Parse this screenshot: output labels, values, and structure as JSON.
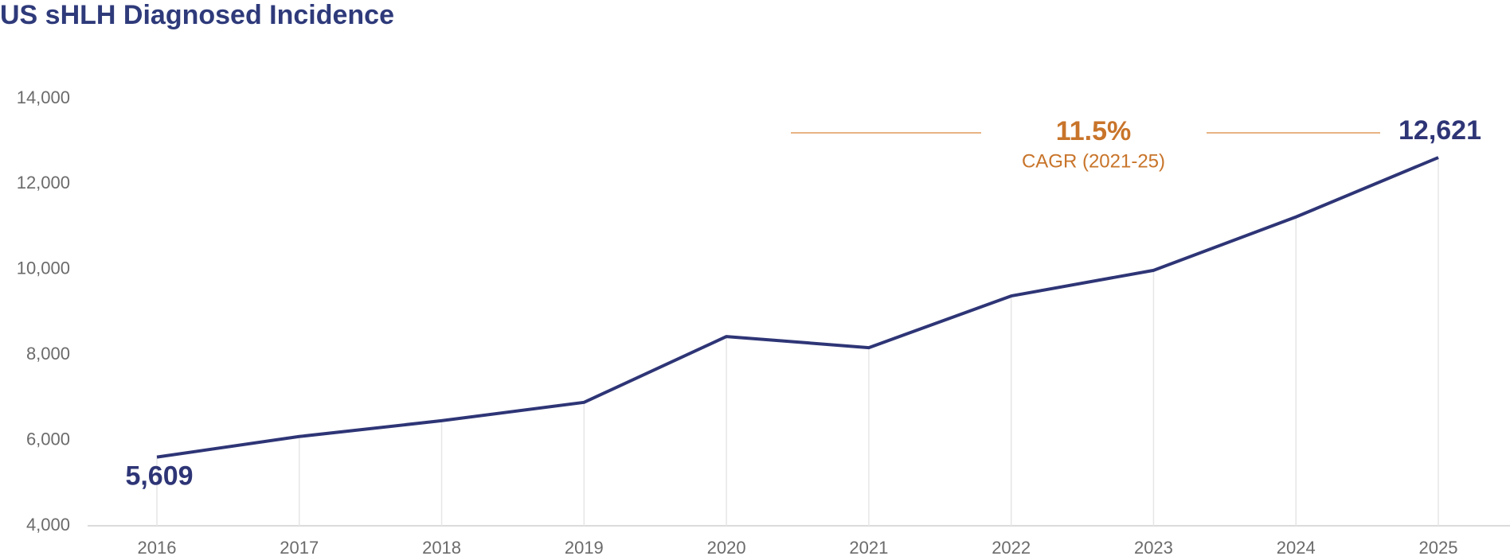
{
  "chart_data": {
    "type": "line",
    "title": "US sHLH Diagnosed Incidence",
    "categories": [
      "2016",
      "2017",
      "2018",
      "2019",
      "2020",
      "2021",
      "2022",
      "2023",
      "2024",
      "2025"
    ],
    "series": [
      {
        "name": "US sHLH Diagnosed Incidence",
        "color": "#2e3576",
        "values": [
          5609,
          6090,
          6460,
          6890,
          8430,
          8170,
          9380,
          9980,
          11230,
          12621
        ],
        "value_labels": [
          "5,609",
          null,
          null,
          null,
          null,
          null,
          null,
          null,
          null,
          "12,621"
        ]
      }
    ],
    "ylim": [
      4000,
      14000
    ],
    "yticks": [
      {
        "value": 4000,
        "label": "4,000"
      },
      {
        "value": 6000,
        "label": "6,000"
      },
      {
        "value": 8000,
        "label": "8,000"
      },
      {
        "value": 10000,
        "label": "10,000"
      },
      {
        "value": 12000,
        "label": "12,000"
      },
      {
        "value": 14000,
        "label": "14,000"
      }
    ],
    "annotation": {
      "value_text": "11.5%",
      "label": "CAGR (2021-25)",
      "color": "#c8742a"
    },
    "drop_lines": true
  }
}
